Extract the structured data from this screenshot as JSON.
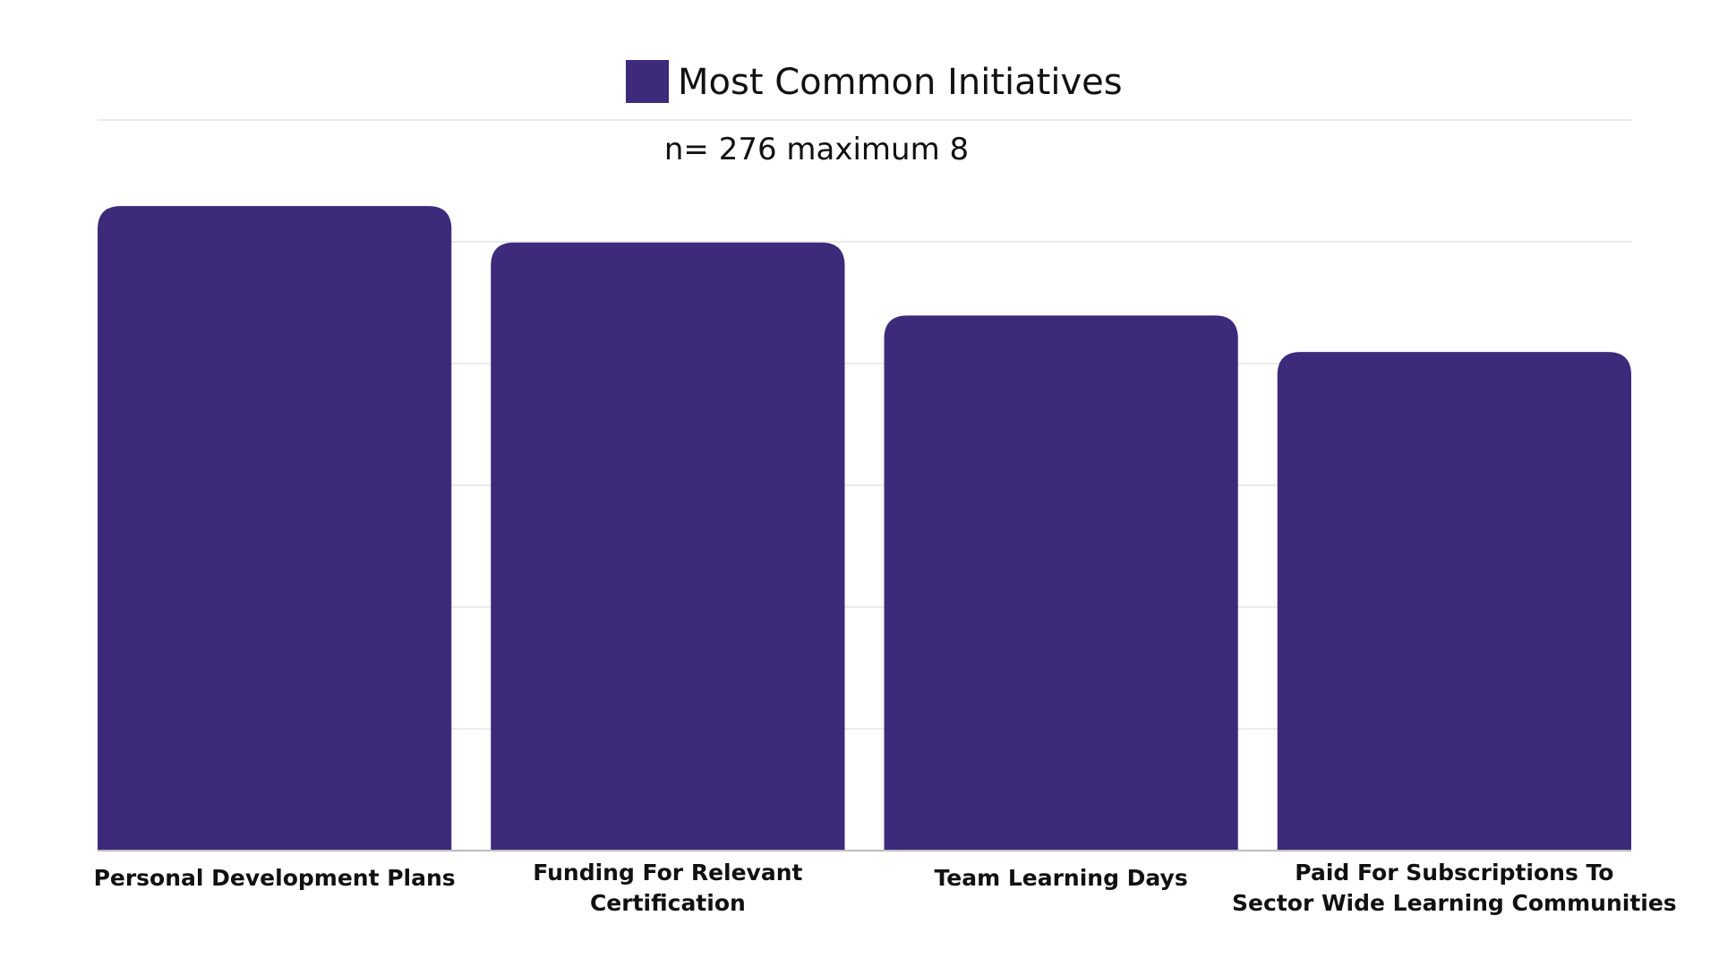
{
  "chart_data": {
    "type": "bar",
    "subtitle": "n= 276 maximum 8",
    "categories": [
      "Personal Development Plans",
      "Funding For Relevant Certification",
      "Team Learning Days",
      "Paid For Subscriptions To Sector Wide Learning Communities"
    ],
    "category_lines": [
      [
        "Personal Development Plans"
      ],
      [
        "Funding For Relevant",
        "Certification"
      ],
      [
        "Team Learning Days"
      ],
      [
        "Paid For Subscriptions To",
        "Sector Wide Learning Communities"
      ]
    ],
    "series": [
      {
        "name": "Most Common Initiatives",
        "color": "#3d2a7a",
        "values": [
          265,
          250,
          220,
          205
        ]
      }
    ],
    "ylim": [
      0,
      300
    ],
    "y_ticks_shown": false,
    "grid": true,
    "legend_position": "top-center"
  }
}
